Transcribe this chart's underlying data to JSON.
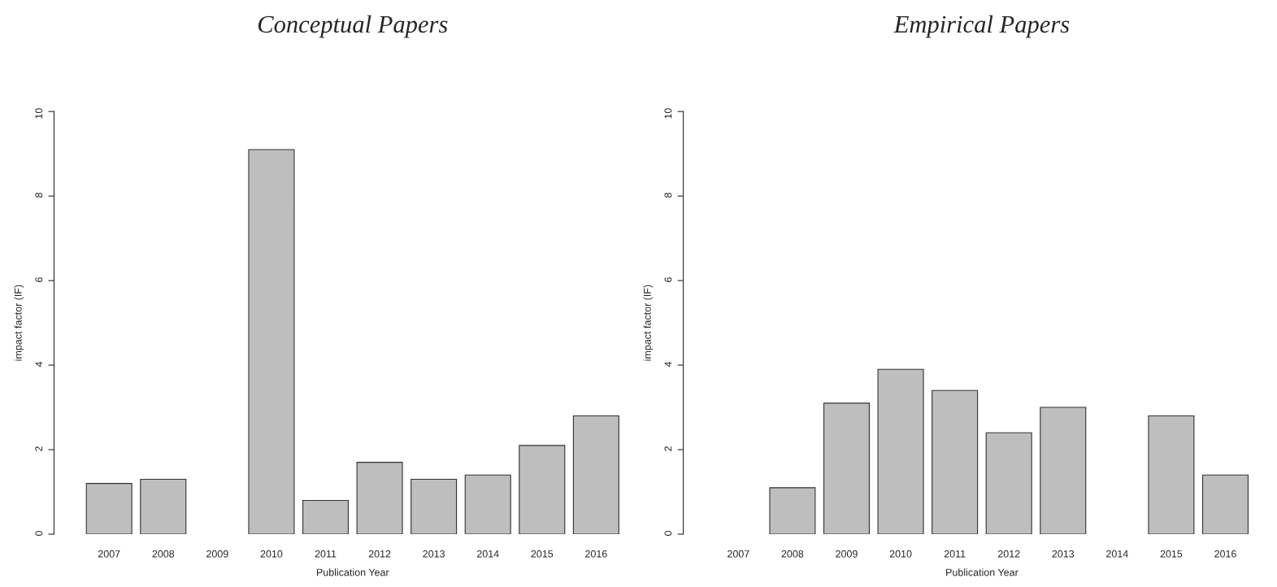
{
  "chart_data": [
    {
      "type": "bar",
      "title": "Conceptual Papers",
      "xlabel": "Publication Year",
      "ylabel": "impact factor (IF)",
      "categories": [
        "2007",
        "2008",
        "2009",
        "2010",
        "2011",
        "2012",
        "2013",
        "2014",
        "2015",
        "2016"
      ],
      "values": [
        1.2,
        1.3,
        null,
        9.1,
        0.8,
        1.7,
        1.3,
        1.4,
        2.1,
        2.8
      ],
      "color": "#bebebe",
      "ylim": [
        0,
        10
      ],
      "yticks": [
        0,
        2,
        4,
        6,
        8,
        10
      ],
      "grid": false,
      "legend": false
    },
    {
      "type": "bar",
      "title": "Empirical Papers",
      "xlabel": "Publication Year",
      "ylabel": "impact factor (IF)",
      "categories": [
        "2007",
        "2008",
        "2009",
        "2010",
        "2011",
        "2012",
        "2013",
        "2014",
        "2015",
        "2016"
      ],
      "values": [
        null,
        1.1,
        3.1,
        3.9,
        3.4,
        2.4,
        3.0,
        null,
        2.8,
        1.4
      ],
      "color": "#bebebe",
      "ylim": [
        0,
        10
      ],
      "yticks": [
        0,
        2,
        4,
        6,
        8,
        10
      ],
      "grid": false,
      "legend": false
    }
  ]
}
